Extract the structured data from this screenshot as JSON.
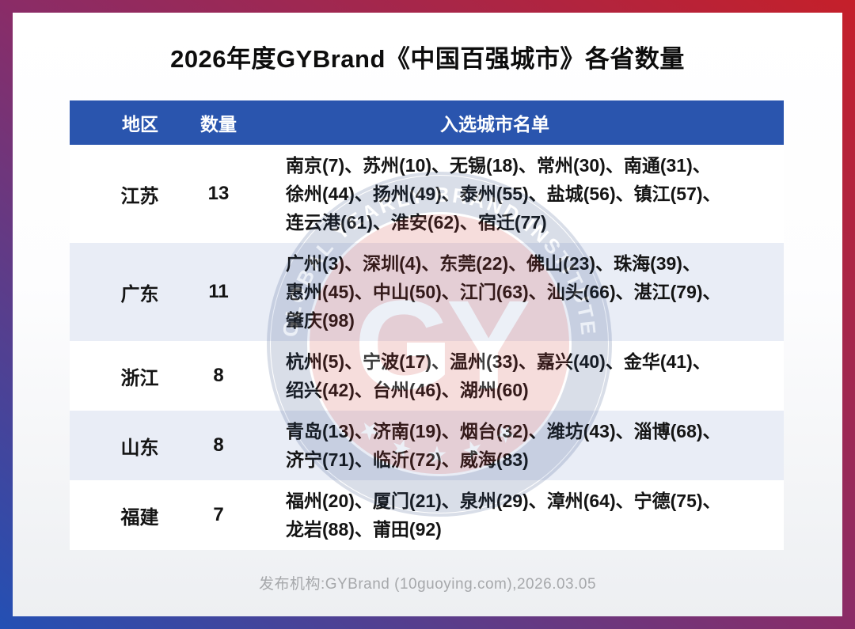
{
  "page": {
    "title": "2026年度GYBrand《中国百强城市》各省数量",
    "footer": "发布机构:GYBrand (10guoying.com),2026.03.05"
  },
  "table": {
    "columns": [
      "地区",
      "数量",
      "入选城市名单"
    ],
    "separator": "、",
    "rows": [
      {
        "region": "江苏",
        "count": "13",
        "cities": [
          "南京(7)",
          "苏州(10)",
          "无锡(18)",
          "常州(30)",
          "南通(31)",
          "徐州(44)",
          "扬州(49)",
          "泰州(55)",
          "盐城(56)",
          "镇江(57)",
          "连云港(61)",
          "淮安(62)",
          "宿迁(77)"
        ]
      },
      {
        "region": "广东",
        "count": "11",
        "cities": [
          "广州(3)",
          "深圳(4)",
          "东莞(22)",
          "佛山(23)",
          "珠海(39)",
          "惠州(45)",
          "中山(50)",
          "江门(63)",
          "汕头(66)",
          "湛江(79)",
          "肇庆(98)"
        ]
      },
      {
        "region": "浙江",
        "count": "8",
        "cities": [
          "杭州(5)",
          "宁波(17)",
          "温州(33)",
          "嘉兴(40)",
          "金华(41)",
          "绍兴(42)",
          "台州(46)",
          "湖州(60)"
        ]
      },
      {
        "region": "山东",
        "count": "8",
        "cities": [
          "青岛(13)",
          "济南(19)",
          "烟台(32)",
          "潍坊(43)",
          "淄博(68)",
          "济宁(71)",
          "临沂(72)",
          "威海(83)"
        ]
      },
      {
        "region": "福建",
        "count": "7",
        "cities": [
          "福州(20)",
          "厦门(21)",
          "泉州(29)",
          "漳州(64)",
          "宁德(75)",
          "龙岩(88)",
          "莆田(92)"
        ]
      }
    ]
  },
  "watermark": {
    "ring_text": "GLOBAL YEARLY BRAND INSTITUTE",
    "stars": "★ ★ ★ ★ ★",
    "monogram": "GY"
  },
  "colors": {
    "header_bg": "#2a55ae",
    "row_alt_bg": "#e9edf6",
    "border_gradient_start": "#c5202a",
    "border_gradient_end": "#2350b4",
    "footer_text": "#a6a8ab",
    "watermark_ring": "#24437c",
    "watermark_disc": "#cf3b38"
  }
}
